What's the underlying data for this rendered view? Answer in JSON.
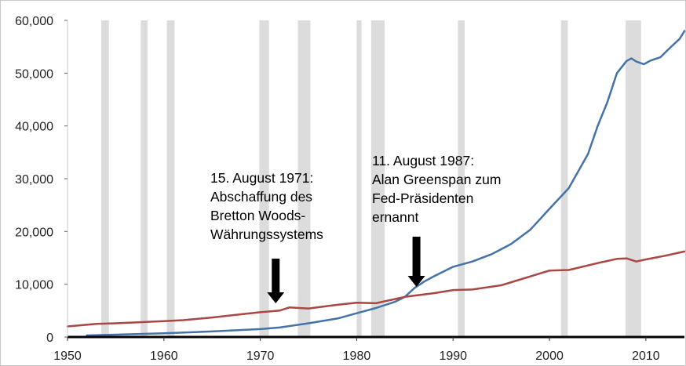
{
  "chart_data": {
    "type": "line",
    "xlim": [
      1950,
      2014
    ],
    "ylim": [
      0,
      60000
    ],
    "x_ticks": [
      "1950",
      "1960",
      "1970",
      "1980",
      "1990",
      "2000",
      "2010"
    ],
    "y_ticks": [
      "0",
      "10,000",
      "20,000",
      "30,000",
      "40,000",
      "50,000",
      "60,000"
    ],
    "grid": "off",
    "recession_bands": [
      [
        1953.5,
        1954.3
      ],
      [
        1957.6,
        1958.3
      ],
      [
        1960.3,
        1961.1
      ],
      [
        1969.9,
        1970.9
      ],
      [
        1973.9,
        1975.2
      ],
      [
        1980.0,
        1980.5
      ],
      [
        1981.5,
        1982.9
      ],
      [
        1990.5,
        1991.2
      ],
      [
        2001.2,
        2001.9
      ],
      [
        2007.9,
        2009.5
      ]
    ],
    "series": [
      {
        "color": "#4572a7",
        "points": [
          [
            1952,
            300
          ],
          [
            1955,
            450
          ],
          [
            1960,
            700
          ],
          [
            1965,
            1050
          ],
          [
            1970,
            1500
          ],
          [
            1972,
            1800
          ],
          [
            1975,
            2600
          ],
          [
            1978,
            3500
          ],
          [
            1980,
            4500
          ],
          [
            1982,
            5500
          ],
          [
            1984,
            6700
          ],
          [
            1985,
            7600
          ],
          [
            1986,
            9300
          ],
          [
            1987,
            10500
          ],
          [
            1988,
            11500
          ],
          [
            1990,
            13300
          ],
          [
            1992,
            14300
          ],
          [
            1994,
            15700
          ],
          [
            1996,
            17600
          ],
          [
            1998,
            20300
          ],
          [
            2000,
            24300
          ],
          [
            2002,
            28200
          ],
          [
            2004,
            34700
          ],
          [
            2005,
            40000
          ],
          [
            2006,
            44500
          ],
          [
            2007,
            50000
          ],
          [
            2008,
            52300
          ],
          [
            2008.5,
            52800
          ],
          [
            2009,
            52200
          ],
          [
            2009.8,
            51700
          ],
          [
            2010.5,
            52400
          ],
          [
            2011.5,
            53000
          ],
          [
            2012.5,
            54800
          ],
          [
            2013.5,
            56500
          ],
          [
            2014,
            58000
          ]
        ]
      },
      {
        "color": "#aa4643",
        "points": [
          [
            1950,
            2000
          ],
          [
            1953,
            2500
          ],
          [
            1955,
            2600
          ],
          [
            1960,
            3000
          ],
          [
            1962,
            3200
          ],
          [
            1965,
            3700
          ],
          [
            1968,
            4300
          ],
          [
            1970,
            4700
          ],
          [
            1972,
            5000
          ],
          [
            1973,
            5600
          ],
          [
            1975,
            5400
          ],
          [
            1978,
            6100
          ],
          [
            1980,
            6500
          ],
          [
            1982,
            6400
          ],
          [
            1985,
            7600
          ],
          [
            1988,
            8300
          ],
          [
            1990,
            8900
          ],
          [
            1992,
            9000
          ],
          [
            1995,
            9800
          ],
          [
            2000,
            12600
          ],
          [
            2002,
            12700
          ],
          [
            2005,
            14000
          ],
          [
            2007,
            14800
          ],
          [
            2008,
            14900
          ],
          [
            2009,
            14300
          ],
          [
            2010,
            14700
          ],
          [
            2012,
            15400
          ],
          [
            2014,
            16200
          ]
        ]
      }
    ],
    "annotations": [
      {
        "lines": [
          "15. August 1971:",
          "Abschaffung des",
          "Bretton Woods-",
          "Währungssystems"
        ],
        "x": 1971.6
      },
      {
        "lines": [
          "11. August 1987:",
          "Alan Greenspan zum",
          "Fed-Präsidenten",
          "ernannt"
        ],
        "x": 1986.2
      }
    ]
  }
}
